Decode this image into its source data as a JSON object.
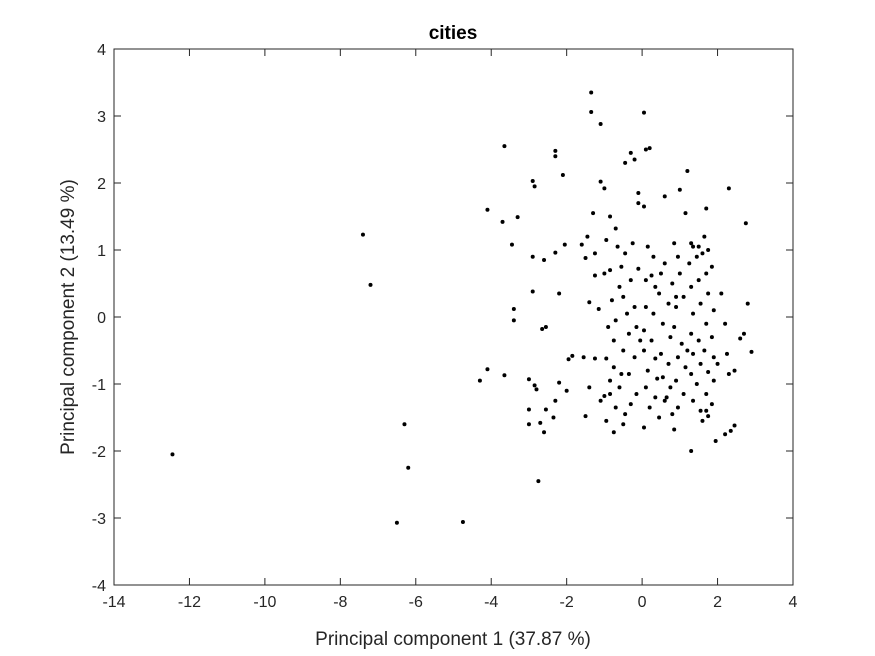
{
  "chart_data": {
    "type": "scatter",
    "title": "cities",
    "xlabel": "Principal component 1 (37.87 %)",
    "ylabel": "Principal component 2 (13.49 %)",
    "xlim": [
      -14,
      4
    ],
    "ylim": [
      -4,
      4
    ],
    "xticks": [
      -14,
      -12,
      -10,
      -8,
      -6,
      -4,
      -2,
      0,
      2,
      4
    ],
    "yticks": [
      -4,
      -3,
      -2,
      -1,
      0,
      1,
      2,
      3,
      4
    ],
    "grid": false,
    "marker_color": "#000000",
    "axis_color": "#262626",
    "points": [
      [
        -12.45,
        -2.05
      ],
      [
        -7.4,
        1.23
      ],
      [
        -7.2,
        0.48
      ],
      [
        -6.3,
        -1.6
      ],
      [
        -6.2,
        -2.25
      ],
      [
        -6.5,
        -3.07
      ],
      [
        -4.75,
        -3.06
      ],
      [
        -3.65,
        2.55
      ],
      [
        -4.1,
        1.6
      ],
      [
        -3.3,
        1.49
      ],
      [
        -3.7,
        1.42
      ],
      [
        -3.45,
        1.08
      ],
      [
        -2.9,
        2.03
      ],
      [
        -2.85,
        1.95
      ],
      [
        -2.9,
        0.9
      ],
      [
        -2.6,
        0.85
      ],
      [
        -2.9,
        0.38
      ],
      [
        -3.4,
        0.12
      ],
      [
        -3.4,
        -0.05
      ],
      [
        -2.55,
        -0.15
      ],
      [
        -2.65,
        -0.18
      ],
      [
        -4.1,
        -0.78
      ],
      [
        -4.3,
        -0.95
      ],
      [
        -3.65,
        -0.87
      ],
      [
        -3.0,
        -0.93
      ],
      [
        -2.85,
        -1.02
      ],
      [
        -2.8,
        -1.08
      ],
      [
        -2.2,
        -0.98
      ],
      [
        -2.0,
        -1.1
      ],
      [
        -2.3,
        -1.25
      ],
      [
        -3.0,
        -1.38
      ],
      [
        -2.55,
        -1.38
      ],
      [
        -3.0,
        -1.6
      ],
      [
        -2.7,
        -1.58
      ],
      [
        -2.35,
        -1.5
      ],
      [
        -2.6,
        -1.72
      ],
      [
        -2.75,
        -2.45
      ],
      [
        -2.3,
        2.48
      ],
      [
        -2.3,
        2.4
      ],
      [
        -2.1,
        2.12
      ],
      [
        -2.05,
        1.08
      ],
      [
        -2.3,
        0.96
      ],
      [
        -2.2,
        0.35
      ],
      [
        -1.85,
        -0.58
      ],
      [
        -1.95,
        -0.63
      ],
      [
        -1.35,
        3.35
      ],
      [
        -1.35,
        3.06
      ],
      [
        -1.1,
        2.88
      ],
      [
        -1.3,
        1.55
      ],
      [
        -1.1,
        2.02
      ],
      [
        -1.0,
        1.92
      ],
      [
        -1.45,
        1.2
      ],
      [
        -1.6,
        1.08
      ],
      [
        -1.25,
        0.95
      ],
      [
        -1.5,
        0.88
      ],
      [
        -1.25,
        0.62
      ],
      [
        -1.0,
        0.65
      ],
      [
        -1.4,
        0.22
      ],
      [
        -1.15,
        0.12
      ],
      [
        -1.55,
        -0.6
      ],
      [
        -1.25,
        -0.62
      ],
      [
        -1.4,
        -1.05
      ],
      [
        -1.0,
        -1.18
      ],
      [
        -1.1,
        -1.25
      ],
      [
        -1.5,
        -1.48
      ],
      [
        -0.85,
        1.5
      ],
      [
        -0.7,
        1.32
      ],
      [
        -0.95,
        1.15
      ],
      [
        -0.65,
        1.05
      ],
      [
        -0.85,
        0.7
      ],
      [
        -0.55,
        0.75
      ],
      [
        -0.8,
        0.25
      ],
      [
        -0.5,
        0.3
      ],
      [
        -0.7,
        -0.05
      ],
      [
        -0.9,
        -0.15
      ],
      [
        -0.75,
        -0.35
      ],
      [
        -0.5,
        -0.5
      ],
      [
        -0.95,
        -0.62
      ],
      [
        -0.75,
        -0.75
      ],
      [
        -0.55,
        -0.85
      ],
      [
        -0.85,
        -0.95
      ],
      [
        -0.6,
        -1.05
      ],
      [
        -0.85,
        -1.15
      ],
      [
        -0.7,
        -1.35
      ],
      [
        -0.95,
        -1.55
      ],
      [
        -0.75,
        -1.72
      ],
      [
        -0.5,
        -1.6
      ],
      [
        -0.3,
        -1.3
      ],
      [
        -0.15,
        -1.15
      ],
      [
        -0.35,
        -0.85
      ],
      [
        -0.2,
        -0.6
      ],
      [
        -0.35,
        -0.25
      ],
      [
        -0.15,
        -0.15
      ],
      [
        -0.4,
        0.05
      ],
      [
        -0.2,
        0.15
      ],
      [
        -0.3,
        0.55
      ],
      [
        -0.1,
        0.72
      ],
      [
        -0.45,
        0.95
      ],
      [
        -0.25,
        1.1
      ],
      [
        -0.45,
        2.3
      ],
      [
        -0.3,
        2.45
      ],
      [
        -0.2,
        2.35
      ],
      [
        -0.1,
        1.85
      ],
      [
        -0.1,
        1.7
      ],
      [
        0.1,
        2.5
      ],
      [
        0.05,
        3.05
      ],
      [
        0.2,
        2.52
      ],
      [
        0.05,
        1.65
      ],
      [
        0.15,
        1.05
      ],
      [
        0.3,
        0.9
      ],
      [
        0.1,
        0.55
      ],
      [
        0.35,
        0.45
      ],
      [
        0.1,
        0.15
      ],
      [
        0.3,
        0.05
      ],
      [
        0.05,
        -0.2
      ],
      [
        0.25,
        -0.35
      ],
      [
        0.05,
        -0.5
      ],
      [
        0.35,
        -0.62
      ],
      [
        0.15,
        -0.8
      ],
      [
        0.4,
        -0.92
      ],
      [
        0.1,
        -1.05
      ],
      [
        0.35,
        -1.2
      ],
      [
        0.2,
        -1.35
      ],
      [
        0.05,
        -1.65
      ],
      [
        0.5,
        0.65
      ],
      [
        0.6,
        0.8
      ],
      [
        0.45,
        0.35
      ],
      [
        0.7,
        0.2
      ],
      [
        0.55,
        -0.1
      ],
      [
        0.75,
        -0.3
      ],
      [
        0.5,
        -0.55
      ],
      [
        0.7,
        -0.7
      ],
      [
        0.55,
        -0.9
      ],
      [
        0.75,
        -1.05
      ],
      [
        0.6,
        -1.25
      ],
      [
        0.8,
        -1.45
      ],
      [
        0.65,
        -1.2
      ],
      [
        0.85,
        1.1
      ],
      [
        0.95,
        0.9
      ],
      [
        0.8,
        0.5
      ],
      [
        1.0,
        0.65
      ],
      [
        0.9,
        0.15
      ],
      [
        1.1,
        0.3
      ],
      [
        0.85,
        -0.15
      ],
      [
        1.05,
        -0.4
      ],
      [
        0.95,
        -0.6
      ],
      [
        1.15,
        -0.75
      ],
      [
        0.9,
        -0.95
      ],
      [
        1.1,
        -1.15
      ],
      [
        0.95,
        -1.35
      ],
      [
        0.85,
        -1.68
      ],
      [
        1.0,
        1.9
      ],
      [
        1.2,
        2.18
      ],
      [
        1.15,
        1.55
      ],
      [
        1.3,
        1.1
      ],
      [
        1.25,
        0.8
      ],
      [
        1.45,
        0.9
      ],
      [
        1.3,
        0.45
      ],
      [
        1.5,
        0.55
      ],
      [
        1.35,
        0.05
      ],
      [
        1.55,
        0.2
      ],
      [
        1.3,
        -0.25
      ],
      [
        1.5,
        -0.35
      ],
      [
        1.35,
        -0.55
      ],
      [
        1.55,
        -0.7
      ],
      [
        1.3,
        -0.85
      ],
      [
        1.45,
        -1.0
      ],
      [
        1.35,
        -1.25
      ],
      [
        1.55,
        -1.4
      ],
      [
        1.3,
        -2.0
      ],
      [
        1.6,
        -1.55
      ],
      [
        1.5,
        1.05
      ],
      [
        1.65,
        1.2
      ],
      [
        1.7,
        1.62
      ],
      [
        1.75,
        1.0
      ],
      [
        1.7,
        0.65
      ],
      [
        1.85,
        0.75
      ],
      [
        1.75,
        0.35
      ],
      [
        1.9,
        0.1
      ],
      [
        1.7,
        -0.1
      ],
      [
        1.85,
        -0.3
      ],
      [
        1.65,
        -0.5
      ],
      [
        1.9,
        -0.6
      ],
      [
        1.75,
        -0.82
      ],
      [
        1.9,
        -0.95
      ],
      [
        1.7,
        -1.15
      ],
      [
        1.85,
        -1.3
      ],
      [
        1.7,
        -1.4
      ],
      [
        1.75,
        -1.48
      ],
      [
        1.95,
        -1.85
      ],
      [
        2.0,
        -0.7
      ],
      [
        2.1,
        0.35
      ],
      [
        2.2,
        -0.1
      ],
      [
        2.25,
        -0.55
      ],
      [
        2.3,
        -0.85
      ],
      [
        2.35,
        -1.7
      ],
      [
        2.45,
        -1.62
      ],
      [
        2.3,
        1.92
      ],
      [
        2.75,
        1.4
      ],
      [
        2.8,
        0.2
      ],
      [
        2.9,
        -0.52
      ],
      [
        2.6,
        -0.32
      ],
      [
        2.7,
        -0.25
      ],
      [
        2.45,
        -0.8
      ],
      [
        2.2,
        -1.75
      ],
      [
        0.6,
        1.8
      ],
      [
        1.35,
        1.05
      ],
      [
        -0.05,
        -0.35
      ],
      [
        0.45,
        -1.5
      ],
      [
        -0.45,
        -1.45
      ],
      [
        0.9,
        0.3
      ],
      [
        1.2,
        -0.5
      ],
      [
        0.25,
        0.62
      ],
      [
        -0.6,
        0.45
      ],
      [
        1.6,
        0.95
      ]
    ]
  }
}
